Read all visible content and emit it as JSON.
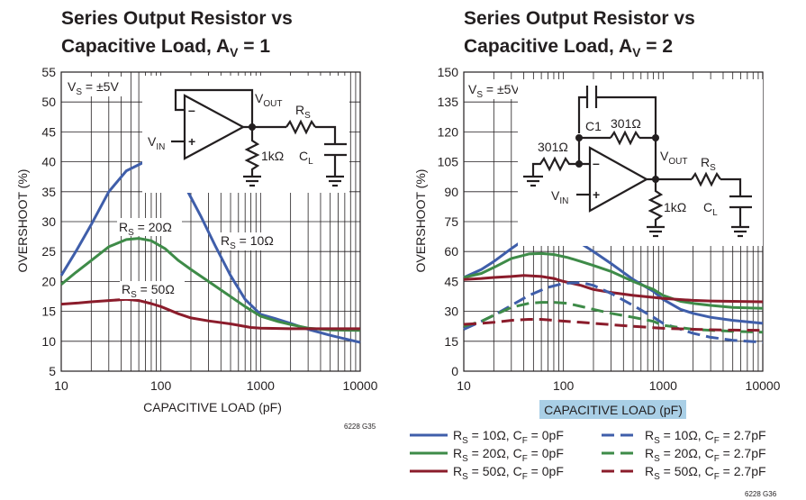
{
  "left": {
    "title_line1": "Series Output Resistor vs",
    "title_line2_a": "Capacitive Load, A",
    "title_line2_sub": "V",
    "title_line2_b": " = 1",
    "ylabel": "OVERSHOOT  (%)",
    "xlabel": "CAPACITIVE LOAD (pF)",
    "code": "6228 G35",
    "vs_label": "V",
    "vs_sub": "S",
    "vs_value": " = ±5V",
    "vout": "V",
    "vout_sub": "OUT",
    "rs": "R",
    "rs_sub": "S",
    "vin": "V",
    "vin_sub": "IN",
    "r1k": "1kΩ",
    "cl": "C",
    "cl_sub": "L",
    "minus": "–",
    "plus": "+",
    "ann_rs20_a": "R",
    "ann_rs20_sub": "S",
    "ann_rs20_b": " = 20Ω",
    "ann_rs10_a": "R",
    "ann_rs10_sub": "S",
    "ann_rs10_b": " = 10Ω",
    "ann_rs50_a": "R",
    "ann_rs50_sub": "S",
    "ann_rs50_b": " = 50Ω"
  },
  "right": {
    "title_line1": "Series Output Resistor vs",
    "title_line2_a": "Capacitive Load, A",
    "title_line2_sub": "V",
    "title_line2_b": " = 2",
    "ylabel": "OVERSHOOT  (%)",
    "xlabel": "CAPACITIVE LOAD (pF)",
    "code": "6228 G36",
    "vs_label": "V",
    "vs_sub": "S",
    "vs_value": " = ±5V",
    "c1": "C1",
    "r301a": "301Ω",
    "r301b": "301Ω",
    "vout": "V",
    "vout_sub": "OUT",
    "rs": "R",
    "rs_sub": "S",
    "vin": "V",
    "vin_sub": "IN",
    "r1k": "1kΩ",
    "cl": "C",
    "cl_sub": "L",
    "minus": "–",
    "plus": "+"
  },
  "legend": [
    {
      "a": "R",
      "sub": "S",
      "b": " = 10Ω, C",
      "sub2": "F",
      "c": " = 0pF",
      "color": "#3f5eaa",
      "dash": false
    },
    {
      "a": "R",
      "sub": "S",
      "b": " = 20Ω, C",
      "sub2": "F",
      "c": " = 0pF",
      "color": "#3e8b48",
      "dash": false
    },
    {
      "a": "R",
      "sub": "S",
      "b": " = 50Ω, C",
      "sub2": "F",
      "c": " = 0pF",
      "color": "#8b1c2b",
      "dash": false
    },
    {
      "a": "R",
      "sub": "S",
      "b": " = 10Ω, C",
      "sub2": "F",
      "c": " = 2.7pF",
      "color": "#3f5eaa",
      "dash": true
    },
    {
      "a": "R",
      "sub": "S",
      "b": " = 20Ω, C",
      "sub2": "F",
      "c": " = 2.7pF",
      "color": "#3e8b48",
      "dash": true
    },
    {
      "a": "R",
      "sub": "S",
      "b": " = 50Ω, C",
      "sub2": "F",
      "c": " = 2.7pF",
      "color": "#8b1c2b",
      "dash": true
    }
  ],
  "chart_data": [
    {
      "type": "line",
      "title": "Series Output Resistor vs Capacitive Load, AV = 1",
      "xlabel": "CAPACITIVE LOAD (pF)",
      "ylabel": "OVERSHOOT (%)",
      "xscale": "log",
      "xlim": [
        10,
        10000
      ],
      "ylim": [
        5,
        55
      ],
      "xticks": [
        10,
        100,
        1000,
        10000
      ],
      "yticks": [
        5,
        10,
        15,
        20,
        25,
        30,
        35,
        40,
        45,
        50,
        55
      ],
      "grid": true,
      "series": [
        {
          "name": "RS = 10Ω",
          "color": "#3f5eaa",
          "dashed": false,
          "x": [
            10,
            14,
            20,
            30,
            45,
            65,
            90,
            130,
            180,
            250,
            350,
            500,
            700,
            1000,
            1400,
            2000,
            3000,
            5000,
            7000,
            10000
          ],
          "y": [
            21,
            25,
            29.5,
            35,
            38.5,
            39.8,
            39.8,
            38.5,
            35.5,
            31,
            26,
            21,
            17,
            14.5,
            13.8,
            13,
            12,
            11,
            10.4,
            9.8
          ]
        },
        {
          "name": "RS = 20Ω",
          "color": "#3e8b48",
          "dashed": false,
          "x": [
            10,
            14,
            20,
            30,
            45,
            60,
            80,
            110,
            150,
            200,
            300,
            450,
            700,
            1000,
            1500,
            2000,
            3000,
            5000,
            10000
          ],
          "y": [
            19.5,
            21.5,
            23.5,
            25.8,
            27,
            27.2,
            26.8,
            25.5,
            23.5,
            22,
            20,
            18,
            15.8,
            14.2,
            13.3,
            12.8,
            12.2,
            11.9,
            11.8
          ]
        },
        {
          "name": "RS = 50Ω",
          "color": "#8b1c2b",
          "dashed": false,
          "x": [
            10,
            15,
            20,
            30,
            45,
            60,
            80,
            100,
            150,
            200,
            300,
            500,
            800,
            1000,
            2000,
            3000,
            5000,
            10000
          ],
          "y": [
            16.2,
            16.4,
            16.6,
            16.8,
            17,
            16.8,
            16.3,
            15.8,
            14.6,
            13.9,
            13.4,
            12.9,
            12.3,
            12.2,
            12.1,
            12.1,
            12.1,
            12.1
          ]
        }
      ]
    },
    {
      "type": "line",
      "title": "Series Output Resistor vs Capacitive Load, AV = 2",
      "xlabel": "CAPACITIVE LOAD (pF)",
      "ylabel": "OVERSHOOT (%)",
      "xscale": "log",
      "xlim": [
        10,
        10000
      ],
      "ylim": [
        0,
        150
      ],
      "xticks": [
        10,
        100,
        1000,
        10000
      ],
      "yticks": [
        0,
        15,
        30,
        45,
        60,
        75,
        90,
        105,
        120,
        135,
        150
      ],
      "grid": true,
      "series": [
        {
          "name": "RS = 10Ω, CF = 0pF",
          "color": "#3f5eaa",
          "dashed": false,
          "x": [
            10,
            15,
            20,
            30,
            45,
            65,
            90,
            130,
            200,
            300,
            500,
            800,
            1000,
            1500,
            2000,
            3000,
            5000,
            10000
          ],
          "y": [
            47,
            51,
            55,
            61.5,
            67.5,
            70,
            69,
            66,
            60,
            54,
            46,
            40,
            36,
            31,
            29,
            27,
            25.5,
            24
          ]
        },
        {
          "name": "RS = 20Ω, CF = 0pF",
          "color": "#3e8b48",
          "dashed": false,
          "x": [
            10,
            15,
            20,
            30,
            45,
            60,
            80,
            110,
            150,
            200,
            300,
            500,
            800,
            1000,
            1500,
            2000,
            3000,
            5000,
            10000
          ],
          "y": [
            47,
            49,
            52,
            56.5,
            58.8,
            59,
            58.5,
            57,
            55,
            53,
            50,
            45,
            41,
            38,
            35,
            34,
            33,
            32,
            31.5
          ]
        },
        {
          "name": "RS = 50Ω, CF = 0pF",
          "color": "#8b1c2b",
          "dashed": false,
          "x": [
            10,
            15,
            20,
            30,
            40,
            60,
            80,
            100,
            150,
            200,
            300,
            500,
            800,
            1000,
            2000,
            3000,
            5000,
            10000
          ],
          "y": [
            46,
            46.5,
            47,
            47.5,
            48,
            47.5,
            46.5,
            45,
            43,
            41,
            39.5,
            38,
            37,
            36.5,
            35.5,
            35.2,
            35,
            34.8
          ]
        },
        {
          "name": "RS = 10Ω, CF = 2.7pF",
          "color": "#3f5eaa",
          "dashed": true,
          "x": [
            10,
            15,
            20,
            30,
            45,
            70,
            100,
            150,
            200,
            300,
            500,
            800,
            1000,
            1500,
            2000,
            3000,
            5000,
            10000
          ],
          "y": [
            21,
            25,
            28,
            33,
            38,
            42,
            44,
            44.5,
            43,
            39,
            33,
            27,
            24,
            21,
            19,
            17,
            15.5,
            14.5
          ]
        },
        {
          "name": "RS = 20Ω, CF = 2.7pF",
          "color": "#3e8b48",
          "dashed": true,
          "x": [
            10,
            15,
            20,
            30,
            45,
            60,
            80,
            110,
            150,
            200,
            300,
            500,
            800,
            1000,
            2000,
            3000,
            5000,
            10000
          ],
          "y": [
            22.5,
            25,
            28,
            32,
            34,
            34.5,
            34.5,
            34,
            32.5,
            31,
            29,
            27,
            25,
            23,
            21,
            20.5,
            20,
            19.5
          ]
        },
        {
          "name": "RS = 50Ω, CF = 2.7pF",
          "color": "#8b1c2b",
          "dashed": true,
          "x": [
            10,
            15,
            20,
            30,
            45,
            60,
            80,
            110,
            150,
            200,
            300,
            500,
            800,
            1000,
            2000,
            3000,
            5000,
            10000
          ],
          "y": [
            23.5,
            24,
            24.5,
            25.5,
            26,
            26,
            25.5,
            25,
            24.5,
            24,
            23.3,
            22.5,
            21.8,
            21.5,
            21,
            20.8,
            20.6,
            20.5
          ]
        }
      ]
    }
  ]
}
